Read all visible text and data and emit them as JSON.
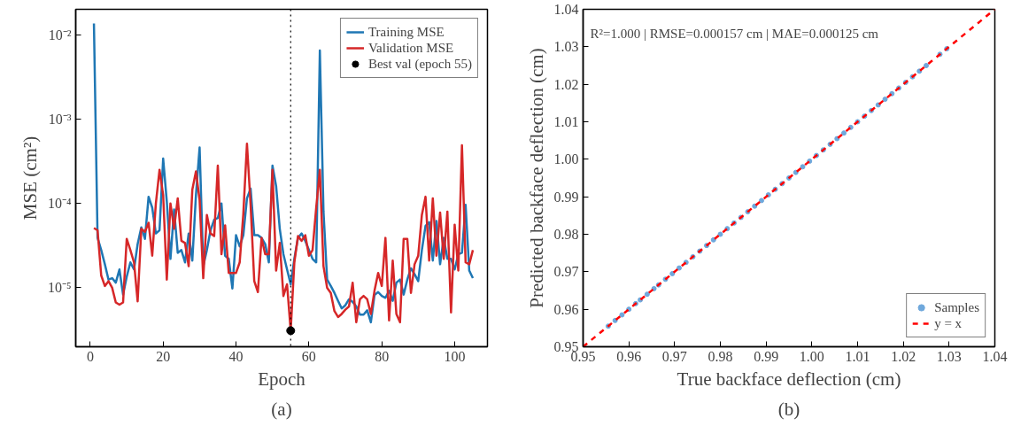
{
  "chart_data": [
    {
      "type": "line",
      "xlabel": "Epoch",
      "ylabel": "MSE (cm²)",
      "log": "y",
      "x": [
        1,
        2,
        3,
        4,
        5,
        6,
        7,
        8,
        9,
        10,
        11,
        12,
        13,
        14,
        15,
        16,
        17,
        18,
        19,
        20,
        21,
        22,
        23,
        24,
        25,
        26,
        27,
        28,
        29,
        30,
        31,
        32,
        33,
        34,
        35,
        36,
        37,
        38,
        39,
        40,
        41,
        42,
        43,
        44,
        45,
        46,
        47,
        48,
        49,
        50,
        51,
        52,
        53,
        54,
        55,
        56,
        57,
        58,
        59,
        60,
        61,
        62,
        63,
        64,
        65,
        66,
        67,
        68,
        69,
        70,
        71,
        72,
        73,
        74,
        75,
        76,
        77,
        78,
        79,
        80,
        81,
        82,
        83,
        84,
        85,
        86,
        87,
        88,
        89,
        90,
        91,
        92,
        93,
        94,
        95,
        96,
        97,
        98,
        99,
        100,
        101,
        102,
        103,
        104,
        105
      ],
      "series": [
        {
          "name": "Training MSE",
          "color": "#1f77b4",
          "values": [
            0.0136,
            3.9e-05,
            2.8e-05,
            1.9e-05,
            1.25e-05,
            1.3e-05,
            1.15e-05,
            1.65e-05,
            8.3e-06,
            1.35e-05,
            2e-05,
            1.65e-05,
            3.3e-05,
            5.2e-05,
            3.8e-05,
            0.00012,
            8.9e-05,
            4.4e-05,
            4.8e-05,
            0.00034,
            0.000105,
            2.2e-05,
            8.5e-05,
            2.6e-05,
            2.8e-05,
            2e-05,
            4.4e-05,
            2.1e-05,
            0.000125,
            0.00046,
            1.8e-05,
            2.8e-05,
            4.8e-05,
            6.4e-05,
            6.7e-05,
            0.0001,
            2.4e-05,
            2.2e-05,
            9.8e-06,
            4.2e-05,
            3.1e-05,
            4.2e-05,
            0.000115,
            0.00015,
            4.2e-05,
            4.2e-05,
            3.9e-05,
            3.3e-05,
            2e-05,
            0.00028,
            0.00016,
            5e-05,
            2.5e-05,
            1.65e-05,
            1.1e-05,
            2.2e-05,
            3.9e-05,
            4.4e-05,
            3.6e-05,
            2.8e-05,
            2.2e-05,
            2e-05,
            0.0065,
            8e-05,
            1.25e-05,
            1.05e-05,
            8.7e-06,
            7e-06,
            5.7e-06,
            6.2e-06,
            7.3e-06,
            6.8e-06,
            6e-06,
            4.8e-06,
            4.8e-06,
            5.4e-06,
            3.9e-06,
            8.2e-06,
            8.9e-06,
            8e-06,
            7.6e-06,
            9.2e-06,
            7e-06,
            1.15e-05,
            1.25e-05,
            8.3e-06,
            1.25e-05,
            1.7e-05,
            1.45e-05,
            1.2e-05,
            2.8e-05,
            5.4e-05,
            6e-05,
            2.1e-05,
            6.2e-05,
            1.9e-05,
            3.9e-05,
            2.2e-05,
            2.2e-05,
            1.65e-05,
            2.5e-05,
            2.6e-05,
            9.6e-05,
            1.6e-05,
            1.3e-05
          ]
        },
        {
          "name": "Validation MSE",
          "color": "#d62728",
          "values": [
            5.1e-05,
            4.8e-05,
            1.4e-05,
            1.05e-05,
            1.2e-05,
            1e-05,
            6.7e-06,
            6.3e-06,
            6.7e-06,
            3.8e-05,
            2.8e-05,
            2e-05,
            6.9e-06,
            5e-05,
            4.6e-05,
            5.9e-05,
            2.4e-05,
            0.0001,
            0.00025,
            0.000125,
            1.25e-05,
            0.0001,
            5e-05,
            0.000115,
            3.6e-05,
            3.4e-05,
            1.8e-05,
            0.000145,
            0.00024,
            0.00011,
            1.3e-05,
            7.3e-05,
            4.4e-05,
            4.1e-05,
            0.00028,
            2.5e-05,
            5.5e-05,
            1.5e-05,
            1.5e-05,
            1.5e-05,
            2e-05,
            7.5e-05,
            0.00051,
            9.6e-05,
            1.2e-05,
            8.9e-06,
            3.9e-05,
            2.5e-05,
            2.5e-05,
            0.00025,
            1.6e-05,
            3.4e-05,
            8e-06,
            1.1e-05,
            3.1e-06,
            2e-05,
            4.1e-05,
            3.6e-05,
            4.2e-05,
            2.4e-05,
            2.8e-05,
            8.9e-05,
            0.00025,
            1.8e-05,
            1e-05,
            8.7e-06,
            5.3e-06,
            4.5e-06,
            4.9e-06,
            5.5e-06,
            6e-06,
            1.15e-05,
            3.9e-06,
            7.3e-06,
            8e-06,
            7.3e-06,
            4.9e-06,
            9.2e-06,
            1.5e-05,
            1.05e-05,
            3.9e-05,
            4.1e-06,
            2.1e-05,
            4.9e-06,
            3.9e-06,
            3.8e-05,
            3.8e-05,
            8.7e-06,
            1.9e-05,
            2.4e-05,
            7.3e-05,
            0.00012,
            2.1e-05,
            0.000115,
            2.4e-05,
            7.8e-05,
            2.2e-05,
            8e-05,
            5.1e-06,
            5.6e-05,
            1.6e-05,
            0.00049,
            2e-05,
            1.9e-05,
            2.8e-05
          ]
        },
        {
          "name": "Best val (epoch 55)",
          "type": "scatter",
          "marker": "circle",
          "color": "#000000",
          "x": [
            55
          ],
          "values": [
            3.1e-06
          ]
        }
      ],
      "xlim": [
        -4,
        109
      ],
      "xticks": [
        0,
        20,
        40,
        60,
        80,
        100
      ],
      "ylim": [
        2e-06,
        0.02
      ],
      "yticks": [
        {
          "value": 1e-05,
          "label": "10⁻⁵"
        },
        {
          "value": 0.0001,
          "label": "10⁻⁴"
        },
        {
          "value": 0.001,
          "label": "10⁻³"
        },
        {
          "value": 0.01,
          "label": "10⁻²"
        }
      ],
      "ref_lines": [
        {
          "axis": "x",
          "value": 55,
          "color": "#000000",
          "line_style": "dotted"
        }
      ],
      "grid": false,
      "legend": "top right",
      "annotations": [
        "(a)"
      ]
    },
    {
      "type": "scatter",
      "xlabel": "True backface deflection (cm)",
      "ylabel": "Predicted backface deflection (cm)",
      "series": [
        {
          "name": "Samples",
          "type": "scatter",
          "marker": "circle",
          "color": "#6fa8dc",
          "x": [
            0.9555,
            0.957,
            0.9585,
            0.96,
            0.9615,
            0.9625,
            0.964,
            0.9655,
            0.9665,
            0.968,
            0.9695,
            0.971,
            0.9725,
            0.974,
            0.9755,
            0.977,
            0.9785,
            0.98,
            0.9815,
            0.983,
            0.9845,
            0.986,
            0.9875,
            0.989,
            0.9905,
            0.992,
            0.9935,
            0.995,
            0.9965,
            0.998,
            0.9995,
            1.001,
            1.0025,
            1.004,
            1.0055,
            1.007,
            1.0085,
            1.01,
            1.0115,
            1.013,
            1.0145,
            1.016,
            1.0175,
            1.019,
            1.0205,
            1.022,
            1.0235,
            1.025,
            1.028,
            1.0295
          ],
          "values": [
            0.9555,
            0.957,
            0.9585,
            0.96,
            0.9615,
            0.9625,
            0.964,
            0.9655,
            0.9665,
            0.968,
            0.9695,
            0.971,
            0.9725,
            0.974,
            0.9755,
            0.977,
            0.9785,
            0.98,
            0.9815,
            0.983,
            0.9845,
            0.986,
            0.9875,
            0.989,
            0.9905,
            0.992,
            0.9935,
            0.995,
            0.9965,
            0.998,
            0.9995,
            1.001,
            1.0025,
            1.004,
            1.0055,
            1.007,
            1.0085,
            1.01,
            1.0115,
            1.013,
            1.0145,
            1.016,
            1.0175,
            1.019,
            1.0205,
            1.022,
            1.0235,
            1.025,
            1.028,
            1.0295
          ]
        },
        {
          "name": "y = x",
          "type": "line",
          "line_style": "dashed",
          "color": "#ff0000",
          "x": [
            0.95,
            1.04
          ],
          "values": [
            0.95,
            1.04
          ]
        }
      ],
      "xlim": [
        0.95,
        1.04
      ],
      "xticks": [
        0.95,
        0.96,
        0.97,
        0.98,
        0.99,
        {
          "value": 1.0,
          "label": "1.00"
        },
        1.01,
        1.02,
        1.03,
        1.04
      ],
      "ylim": [
        0.95,
        1.04
      ],
      "yticks": [
        0.95,
        0.96,
        0.97,
        0.98,
        0.99,
        {
          "value": 1.0,
          "label": "1.00"
        },
        1.01,
        1.02,
        1.03,
        1.04
      ],
      "grid": false,
      "legend": "bottom right",
      "annotations": [
        "R²=1.000 | RMSE=0.000157 cm | MAE=0.000125 cm",
        "(b)"
      ]
    }
  ]
}
